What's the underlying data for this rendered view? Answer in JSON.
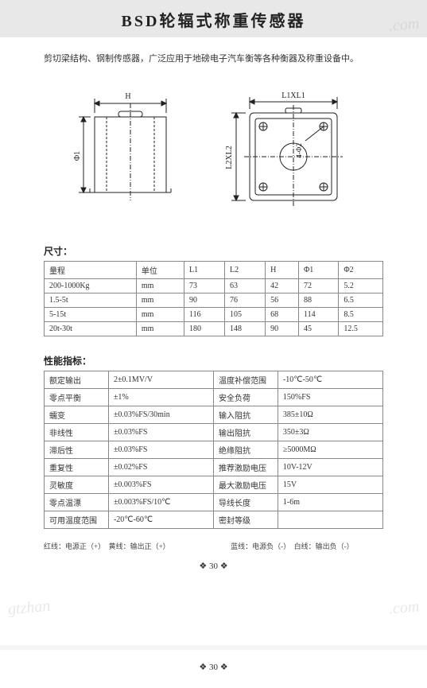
{
  "title": "BSD轮辐式称重传感器",
  "intro": "剪切梁结构、钢制传感器，广泛应用于地磅电子汽车衡等各种衡器及称重设备中。",
  "watermark": ".com",
  "watermark_left": "gtzhan",
  "diagram": {
    "labels": {
      "H": "H",
      "phi1": "Φ1",
      "L1xL1": "L1XL1",
      "L2xL2": "L2XL2",
      "corner": "4-Φ2"
    },
    "stroke": "#222"
  },
  "dim_section": "尺寸：",
  "dim_table": {
    "headers": [
      "量程",
      "单位",
      "L1",
      "L2",
      "H",
      "Φ1",
      "Φ2"
    ],
    "rows": [
      [
        "200-1000Kg",
        "mm",
        "73",
        "63",
        "42",
        "72",
        "5.2"
      ],
      [
        "1.5-5t",
        "mm",
        "90",
        "76",
        "56",
        "88",
        "6.5"
      ],
      [
        "5-15t",
        "mm",
        "116",
        "105",
        "68",
        "114",
        "8.5"
      ],
      [
        "20t-30t",
        "mm",
        "180",
        "148",
        "90",
        "45",
        "12.5"
      ]
    ]
  },
  "perf_section": "性能指标：",
  "perf_table": [
    [
      "额定输出",
      "2±0.1MV/V",
      "温度补偿范围",
      "-10℃-50℃"
    ],
    [
      "零点平衡",
      "±1%",
      "安全负荷",
      "150%FS"
    ],
    [
      "蠕变",
      "±0.03%FS/30min",
      "输入阻抗",
      "385±10Ω"
    ],
    [
      "非线性",
      "±0.03%FS",
      "输出阻抗",
      "350±3Ω"
    ],
    [
      "滞后性",
      "±0.03%FS",
      "绝缘阻抗",
      "≥5000MΩ"
    ],
    [
      "重复性",
      "±0.02%FS",
      "推荐激励电压",
      "10V-12V"
    ],
    [
      "灵敏度",
      "±0.003%FS",
      "最大激励电压",
      "15V"
    ],
    [
      "零点温漂",
      "±0.003%FS/10℃",
      "导线长度",
      "1-6m"
    ],
    [
      "可用温度范围",
      "-20℃-60℃",
      "密封等级",
      ""
    ]
  ],
  "footnote": "红线：电源正（+）　黄线：输出正（+）　　　　　　　　　蓝线：电源负（-）　白线：输出负（-）",
  "page_number_1": "❖ 30 ❖",
  "page_number_2": "❖ 30 ❖"
}
